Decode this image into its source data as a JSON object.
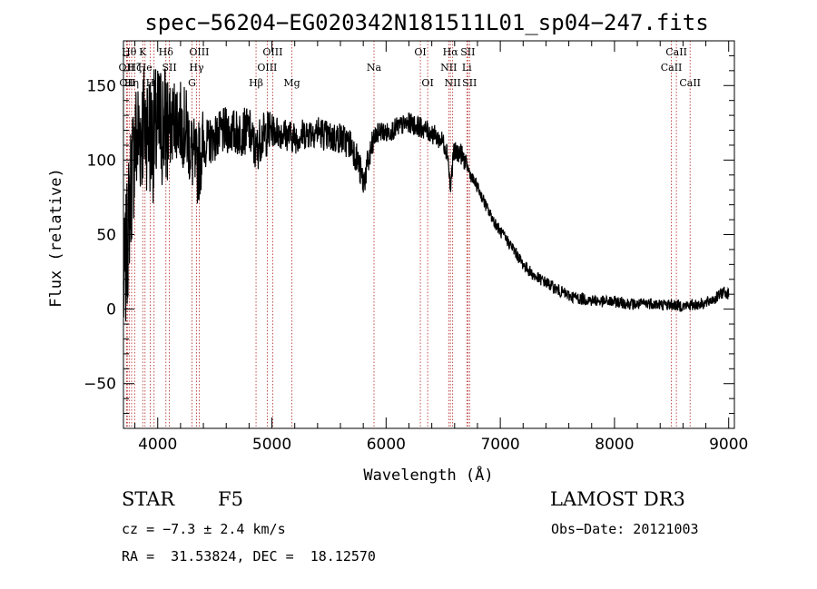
{
  "info": {
    "object_class": "STAR",
    "subclass": "F5",
    "survey": "LAMOST DR3",
    "redshift": "cz = −7.3 ± 2.4 km/s",
    "obs_date": "Obs−Date: 20121003",
    "coords": "RA =  31.53824, DEC =  18.12570"
  },
  "chart_data": {
    "type": "line",
    "title": "spec−56204−EG020342N181511L01_sp04−247.fits",
    "xlabel": "Wavelength (Å)",
    "ylabel": "Flux (relative)",
    "xlim": [
      3700,
      9050
    ],
    "ylim": [
      -80,
      180
    ],
    "xticks": [
      4000,
      5000,
      6000,
      7000,
      8000,
      9000
    ],
    "yticks": [
      -50,
      0,
      50,
      100,
      150
    ],
    "line_color": "#000000",
    "marker_color": "#b22222",
    "spectrum_anchors": {
      "x": [
        3700,
        3730,
        3760,
        3800,
        3850,
        3900,
        3950,
        4000,
        4050,
        4100,
        4150,
        4200,
        4250,
        4300,
        4340,
        4400,
        4500,
        4600,
        4700,
        4800,
        4861,
        4900,
        5000,
        5100,
        5200,
        5300,
        5400,
        5500,
        5600,
        5700,
        5750,
        5800,
        5850,
        5900,
        5950,
        6000,
        6100,
        6200,
        6300,
        6400,
        6500,
        6540,
        6563,
        6590,
        6650,
        6700,
        6750,
        6800,
        6900,
        7000,
        7100,
        7200,
        7300,
        7400,
        7500,
        7600,
        7700,
        7800,
        7900,
        8000,
        8100,
        8200,
        8300,
        8400,
        8500,
        8600,
        8700,
        8800,
        8900,
        8960,
        9000
      ],
      "y": [
        10,
        40,
        80,
        110,
        120,
        125,
        115,
        120,
        125,
        120,
        130,
        125,
        120,
        105,
        95,
        110,
        115,
        120,
        118,
        120,
        105,
        115,
        120,
        118,
        115,
        118,
        120,
        115,
        115,
        110,
        100,
        85,
        100,
        115,
        120,
        118,
        122,
        125,
        122,
        118,
        112,
        105,
        80,
        105,
        105,
        98,
        88,
        82,
        65,
        52,
        42,
        30,
        22,
        18,
        13,
        9,
        7,
        6,
        5,
        5,
        4,
        3,
        4,
        3,
        3,
        2,
        3,
        4,
        8,
        12,
        10
      ]
    },
    "line_markers": [
      {
        "x": 3727,
        "label": "OII",
        "row": 2
      },
      {
        "x": 3734,
        "label": "OII",
        "row": 3
      },
      {
        "x": 3750,
        "label": "Hθ",
        "row": 1
      },
      {
        "x": 3771,
        "label": "Hη",
        "row": 3
      },
      {
        "x": 3798,
        "label": "Hζ",
        "row": 2
      },
      {
        "x": 3869,
        "label": "K",
        "row": 1
      },
      {
        "x": 3889,
        "label": "He",
        "row": 2
      },
      {
        "x": 3934,
        "label": "H",
        "row": 3
      },
      {
        "x": 3968,
        "label": "ε",
        "row": 3
      },
      {
        "x": 4072,
        "label": "Hδ",
        "row": 1
      },
      {
        "x": 4102,
        "label": "SII",
        "row": 2
      },
      {
        "x": 4300,
        "label": "G",
        "row": 3
      },
      {
        "x": 4340,
        "label": "Hγ",
        "row": 2
      },
      {
        "x": 4363,
        "label": "OIII",
        "row": 1
      },
      {
        "x": 4861,
        "label": "Hβ",
        "row": 3
      },
      {
        "x": 4959,
        "label": "OIII",
        "row": 2
      },
      {
        "x": 5007,
        "label": "OIII",
        "row": 1
      },
      {
        "x": 5175,
        "label": "Mg",
        "row": 3
      },
      {
        "x": 5894,
        "label": "Na",
        "row": 2
      },
      {
        "x": 6300,
        "label": "OI",
        "row": 1
      },
      {
        "x": 6364,
        "label": "OI",
        "row": 3
      },
      {
        "x": 6548,
        "label": "NII",
        "row": 2
      },
      {
        "x": 6563,
        "label": "Hα",
        "row": 1
      },
      {
        "x": 6583,
        "label": "NII",
        "row": 3
      },
      {
        "x": 6707,
        "label": "Li",
        "row": 2
      },
      {
        "x": 6716,
        "label": "SII",
        "row": 1
      },
      {
        "x": 6731,
        "label": "SII",
        "row": 3
      },
      {
        "x": 8498,
        "label": "CaII",
        "row": 2
      },
      {
        "x": 8542,
        "label": "CaII",
        "row": 1
      },
      {
        "x": 8662,
        "label": "CaII",
        "row": 3
      }
    ]
  }
}
